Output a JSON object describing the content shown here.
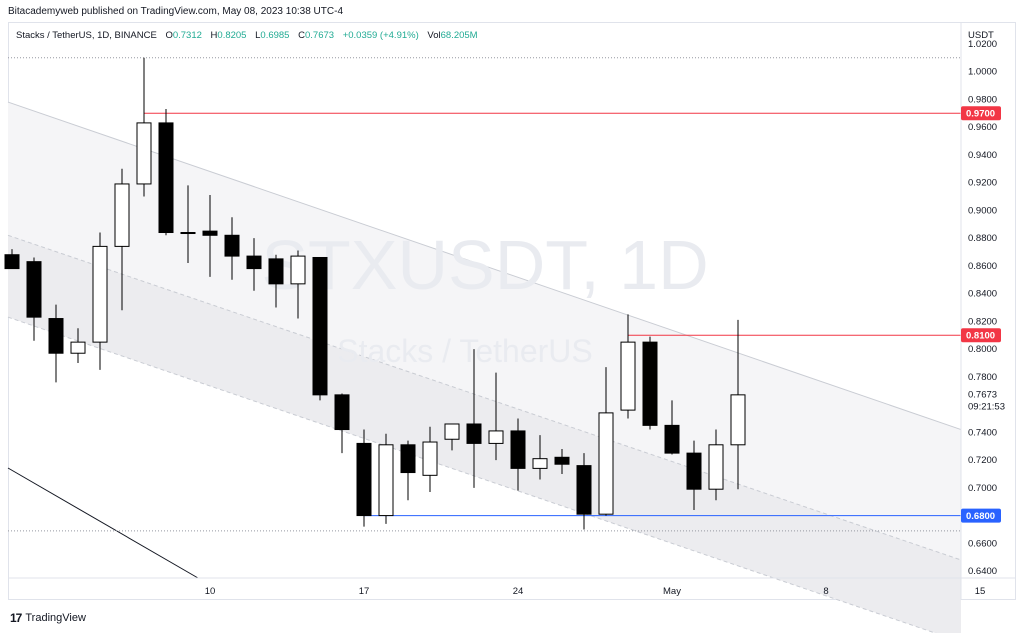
{
  "header": {
    "publisher_line": "Bitacademyweb published on TradingView.com, May 08, 2023 10:38 UTC-4"
  },
  "legend": {
    "symbol": "Stacks / TetherUS, 1D, BINANCE",
    "open_label": "O",
    "open": "0.7312",
    "high_label": "H",
    "high": "0.8205",
    "low_label": "L",
    "low": "0.6985",
    "close_label": "C",
    "close": "0.7673",
    "change": "+0.0359 (+4.91%)",
    "vol_label": "Vol",
    "vol": "68.205M"
  },
  "currency": "USDT",
  "watermark": {
    "ticker": "STXUSDT, 1D",
    "name": "Stacks / TetherUS"
  },
  "footer": {
    "brand": "TradingView",
    "logo_glyph": "17"
  },
  "colors": {
    "up_fill": "#ffffff",
    "down_fill": "#000000",
    "red_line": "#f23645",
    "blue_line": "#2962ff",
    "channel_fill": "#f0f0f3",
    "channel_line": "#c9ccd3"
  },
  "chart_data": {
    "type": "candlestick",
    "ylim": [
      0.635,
      1.035
    ],
    "y_ticks": [
      "1.0200",
      "1.0000",
      "0.9800",
      "0.9600",
      "0.9400",
      "0.9200",
      "0.9000",
      "0.8800",
      "0.8600",
      "0.8400",
      "0.8200",
      "0.8000",
      "0.7800",
      "0.7400",
      "0.7200",
      "0.7000",
      "0.6600",
      "0.6400"
    ],
    "x_ticks": [
      {
        "label": "10",
        "day": 10
      },
      {
        "label": "17",
        "day": 17
      },
      {
        "label": "24",
        "day": 24
      },
      {
        "label": "May",
        "day": 31
      },
      {
        "label": "8",
        "day": 38
      },
      {
        "label": "15",
        "day": 45
      }
    ],
    "candles": [
      {
        "day": 1,
        "o": 0.868,
        "h": 0.872,
        "l": 0.858,
        "c": 0.858
      },
      {
        "day": 2,
        "o": 0.863,
        "h": 0.866,
        "l": 0.806,
        "c": 0.823
      },
      {
        "day": 3,
        "o": 0.822,
        "h": 0.832,
        "l": 0.776,
        "c": 0.797
      },
      {
        "day": 4,
        "o": 0.797,
        "h": 0.815,
        "l": 0.79,
        "c": 0.805
      },
      {
        "day": 5,
        "o": 0.805,
        "h": 0.884,
        "l": 0.785,
        "c": 0.874
      },
      {
        "day": 6,
        "o": 0.874,
        "h": 0.93,
        "l": 0.828,
        "c": 0.919
      },
      {
        "day": 7,
        "o": 0.919,
        "h": 1.01,
        "l": 0.91,
        "c": 0.963
      },
      {
        "day": 8,
        "o": 0.963,
        "h": 0.973,
        "l": 0.882,
        "c": 0.884
      },
      {
        "day": 9,
        "o": 0.884,
        "h": 0.918,
        "l": 0.862,
        "c": 0.884
      },
      {
        "day": 10,
        "o": 0.885,
        "h": 0.911,
        "l": 0.852,
        "c": 0.882
      },
      {
        "day": 11,
        "o": 0.882,
        "h": 0.895,
        "l": 0.85,
        "c": 0.867
      },
      {
        "day": 12,
        "o": 0.867,
        "h": 0.88,
        "l": 0.842,
        "c": 0.858
      },
      {
        "day": 13,
        "o": 0.865,
        "h": 0.868,
        "l": 0.83,
        "c": 0.847
      },
      {
        "day": 14,
        "o": 0.847,
        "h": 0.871,
        "l": 0.822,
        "c": 0.867
      },
      {
        "day": 15,
        "o": 0.866,
        "h": 0.866,
        "l": 0.763,
        "c": 0.767
      },
      {
        "day": 16,
        "o": 0.767,
        "h": 0.768,
        "l": 0.725,
        "c": 0.742
      },
      {
        "day": 17,
        "o": 0.732,
        "h": 0.742,
        "l": 0.672,
        "c": 0.68
      },
      {
        "day": 18,
        "o": 0.68,
        "h": 0.739,
        "l": 0.674,
        "c": 0.731
      },
      {
        "day": 19,
        "o": 0.731,
        "h": 0.734,
        "l": 0.691,
        "c": 0.711
      },
      {
        "day": 20,
        "o": 0.709,
        "h": 0.744,
        "l": 0.697,
        "c": 0.733
      },
      {
        "day": 21,
        "o": 0.735,
        "h": 0.743,
        "l": 0.727,
        "c": 0.746
      },
      {
        "day": 22,
        "o": 0.746,
        "h": 0.8,
        "l": 0.7,
        "c": 0.732
      },
      {
        "day": 23,
        "o": 0.732,
        "h": 0.783,
        "l": 0.72,
        "c": 0.741
      },
      {
        "day": 24,
        "o": 0.741,
        "h": 0.75,
        "l": 0.698,
        "c": 0.714
      },
      {
        "day": 25,
        "o": 0.714,
        "h": 0.738,
        "l": 0.706,
        "c": 0.721
      },
      {
        "day": 26,
        "o": 0.722,
        "h": 0.728,
        "l": 0.71,
        "c": 0.717
      },
      {
        "day": 27,
        "o": 0.716,
        "h": 0.725,
        "l": 0.67,
        "c": 0.681
      },
      {
        "day": 28,
        "o": 0.681,
        "h": 0.787,
        "l": 0.68,
        "c": 0.754
      },
      {
        "day": 29,
        "o": 0.756,
        "h": 0.825,
        "l": 0.75,
        "c": 0.805
      },
      {
        "day": 30,
        "o": 0.805,
        "h": 0.809,
        "l": 0.742,
        "c": 0.745
      },
      {
        "day": 31,
        "o": 0.745,
        "h": 0.763,
        "l": 0.724,
        "c": 0.725
      },
      {
        "day": 32,
        "o": 0.725,
        "h": 0.734,
        "l": 0.684,
        "c": 0.699
      },
      {
        "day": 33,
        "o": 0.699,
        "h": 0.742,
        "l": 0.691,
        "c": 0.731
      },
      {
        "day": 34,
        "o": 0.731,
        "h": 0.821,
        "l": 0.699,
        "c": 0.767
      }
    ],
    "price_labels": [
      {
        "value": 0.97,
        "text": "0.9700",
        "color": "#f23645"
      },
      {
        "value": 0.81,
        "text": "0.8100",
        "color": "#f23645"
      },
      {
        "value": 0.68,
        "text": "0.6800",
        "color": "#2962ff"
      }
    ],
    "last_price": "0.7673",
    "countdown": "09:21:53"
  }
}
